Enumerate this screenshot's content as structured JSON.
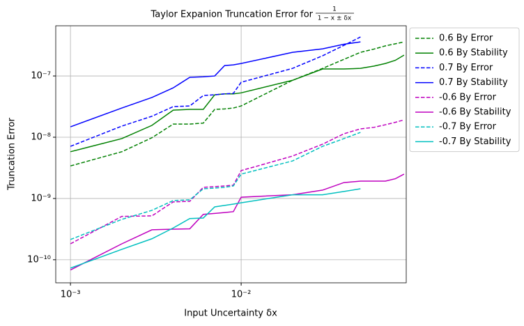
{
  "chart_data": {
    "type": "line",
    "title": "Taylor Expanion Truncation Error for",
    "title_fraction": {
      "numerator": "1",
      "denominator": "1 − x ± δx"
    },
    "x_label": "Input Uncertainty δx",
    "y_label": "Truncation Error",
    "x": [
      0.001,
      0.002,
      0.003,
      0.004,
      0.005,
      0.006,
      0.007,
      0.008,
      0.009,
      0.01,
      0.02,
      0.03,
      0.04,
      0.05,
      0.06,
      0.07,
      0.08,
      0.09
    ],
    "xlim": [
      0.00082,
      0.0927
    ],
    "ylim": [
      4.2e-11,
      6.6e-07
    ],
    "xticks": [
      {
        "value": 0.001,
        "label": "10⁻³"
      },
      {
        "value": 0.01,
        "label": "10⁻²"
      }
    ],
    "yticks": [
      {
        "value": 1e-10,
        "label": "10⁻¹⁰"
      },
      {
        "value": 1e-09,
        "label": "10⁻⁹"
      },
      {
        "value": 1e-08,
        "label": "10⁻⁸"
      },
      {
        "value": 1e-07,
        "label": "10⁻⁷"
      }
    ],
    "xscale": "log",
    "yscale": "log",
    "grid": true,
    "legend": "outside right",
    "series": [
      {
        "name": "0.6 By Error",
        "color": "#008000",
        "style": "dashed",
        "values": [
          3.4e-09,
          5.8e-09,
          9.8e-09,
          1.64e-08,
          1.64e-08,
          1.7e-08,
          2.85e-08,
          2.9e-08,
          3e-08,
          3.24e-08,
          8.5e-08,
          1.33e-07,
          1.87e-07,
          2.43e-07,
          2.75e-07,
          3.1e-07,
          3.35e-07,
          3.6e-07
        ]
      },
      {
        "name": "0.6 By Stability",
        "color": "#008000",
        "style": "solid",
        "values": [
          5.8e-09,
          9.5e-09,
          1.56e-08,
          2.77e-08,
          2.85e-08,
          2.85e-08,
          4.93e-08,
          5.1e-08,
          5.1e-08,
          5.3e-08,
          8.5e-08,
          1.3e-07,
          1.3e-07,
          1.33e-07,
          1.45e-07,
          1.6e-07,
          1.8e-07,
          2.19e-07
        ]
      },
      {
        "name": "0.7 By Error",
        "color": "#0000ff",
        "style": "dashed",
        "values": [
          7.1e-09,
          1.52e-08,
          2.2e-08,
          3.16e-08,
          3.24e-08,
          4.8e-08,
          4.93e-08,
          5.1e-08,
          5.2e-08,
          7.9e-08,
          1.33e-07,
          2.14e-07,
          3.16e-07,
          4.33e-07,
          null,
          null,
          null,
          null
        ]
      },
      {
        "name": "0.7 By Stability",
        "color": "#0000ff",
        "style": "solid",
        "values": [
          1.48e-08,
          3e-08,
          4.45e-08,
          6.4e-08,
          9.5e-08,
          9.7e-08,
          1e-07,
          1.48e-07,
          1.52e-07,
          1.6e-07,
          2.43e-07,
          2.77e-07,
          3.3e-07,
          3.6e-07,
          null,
          null,
          null,
          null
        ]
      },
      {
        "name": "-0.6 By Error",
        "color": "#bf00bf",
        "style": "dashed",
        "values": [
          1.82e-10,
          5.1e-10,
          5.2e-10,
          8.8e-10,
          9e-10,
          1.52e-09,
          1.56e-09,
          1.6e-09,
          1.65e-09,
          2.85e-09,
          4.93e-09,
          7.7e-09,
          1.14e-08,
          1.37e-08,
          1.45e-08,
          1.6e-08,
          1.75e-08,
          1.92e-08
        ]
      },
      {
        "name": "-0.6 By Stability",
        "color": "#bf00bf",
        "style": "solid",
        "values": [
          6.8e-11,
          1.82e-10,
          3.08e-10,
          3.15e-10,
          3.2e-10,
          5.5e-10,
          5.7e-10,
          5.9e-10,
          6.1e-10,
          1.05e-09,
          1.15e-09,
          1.37e-09,
          1.82e-09,
          1.92e-09,
          1.92e-09,
          1.92e-09,
          2.1e-09,
          2.5e-09
        ]
      },
      {
        "name": "-0.7 By Error",
        "color": "#00bfbf",
        "style": "dashed",
        "values": [
          2.14e-10,
          4.56e-10,
          6.4e-10,
          9.25e-10,
          9.5e-10,
          1.44e-09,
          1.48e-09,
          1.52e-09,
          1.6e-09,
          2.5e-09,
          4.1e-09,
          7.1e-09,
          9.5e-09,
          1.2e-08,
          null,
          null,
          null,
          null
        ]
      },
      {
        "name": "-0.7 By Stability",
        "color": "#00bfbf",
        "style": "solid",
        "values": [
          7.3e-11,
          1.48e-10,
          2.2e-10,
          3.3e-10,
          4.7e-10,
          4.8e-10,
          7.3e-10,
          7.7e-10,
          8.1e-10,
          8.5e-10,
          1.15e-09,
          1.15e-09,
          1.3e-09,
          1.44e-09,
          null,
          null,
          null,
          null
        ]
      }
    ]
  }
}
